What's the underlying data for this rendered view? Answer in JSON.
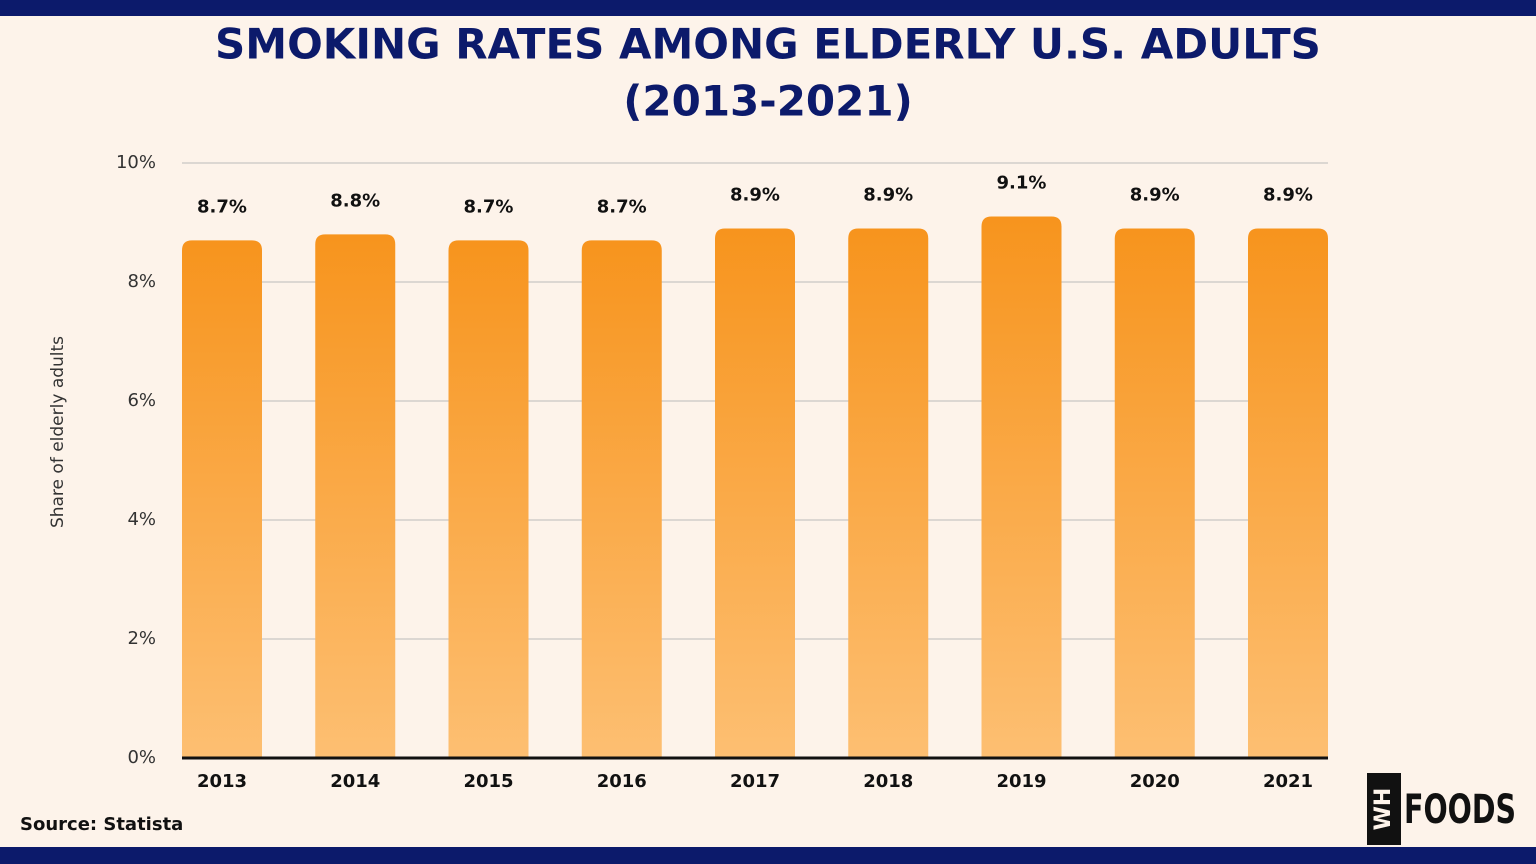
{
  "chart_data": {
    "type": "bar",
    "title": "SMOKING RATES AMONG ELDERLY U.S. ADULTS",
    "subtitle": "(2013-2021)",
    "y_label": "Share of elderly adults",
    "categories": [
      "2013",
      "2014",
      "2015",
      "2016",
      "2017",
      "2018",
      "2019",
      "2020",
      "2021"
    ],
    "values": [
      8.7,
      8.8,
      8.7,
      8.7,
      8.9,
      8.9,
      9.1,
      8.9,
      8.9
    ],
    "value_labels": [
      "8.7%",
      "8.8%",
      "8.7%",
      "8.7%",
      "8.9%",
      "8.9%",
      "9.1%",
      "8.9%",
      "8.9%"
    ],
    "color": "#f7941d",
    "ylim": [
      0,
      10
    ],
    "yticks": [
      {
        "value": 0,
        "label": "0%"
      },
      {
        "value": 2,
        "label": "2%"
      },
      {
        "value": 4,
        "label": "4%"
      },
      {
        "value": 6,
        "label": "6%"
      },
      {
        "value": 8,
        "label": "8%"
      },
      {
        "value": 10,
        "label": "10%"
      }
    ],
    "grid": true,
    "source": "Source: Statista"
  },
  "logo": {
    "left": "WH",
    "right": "FOODS"
  }
}
